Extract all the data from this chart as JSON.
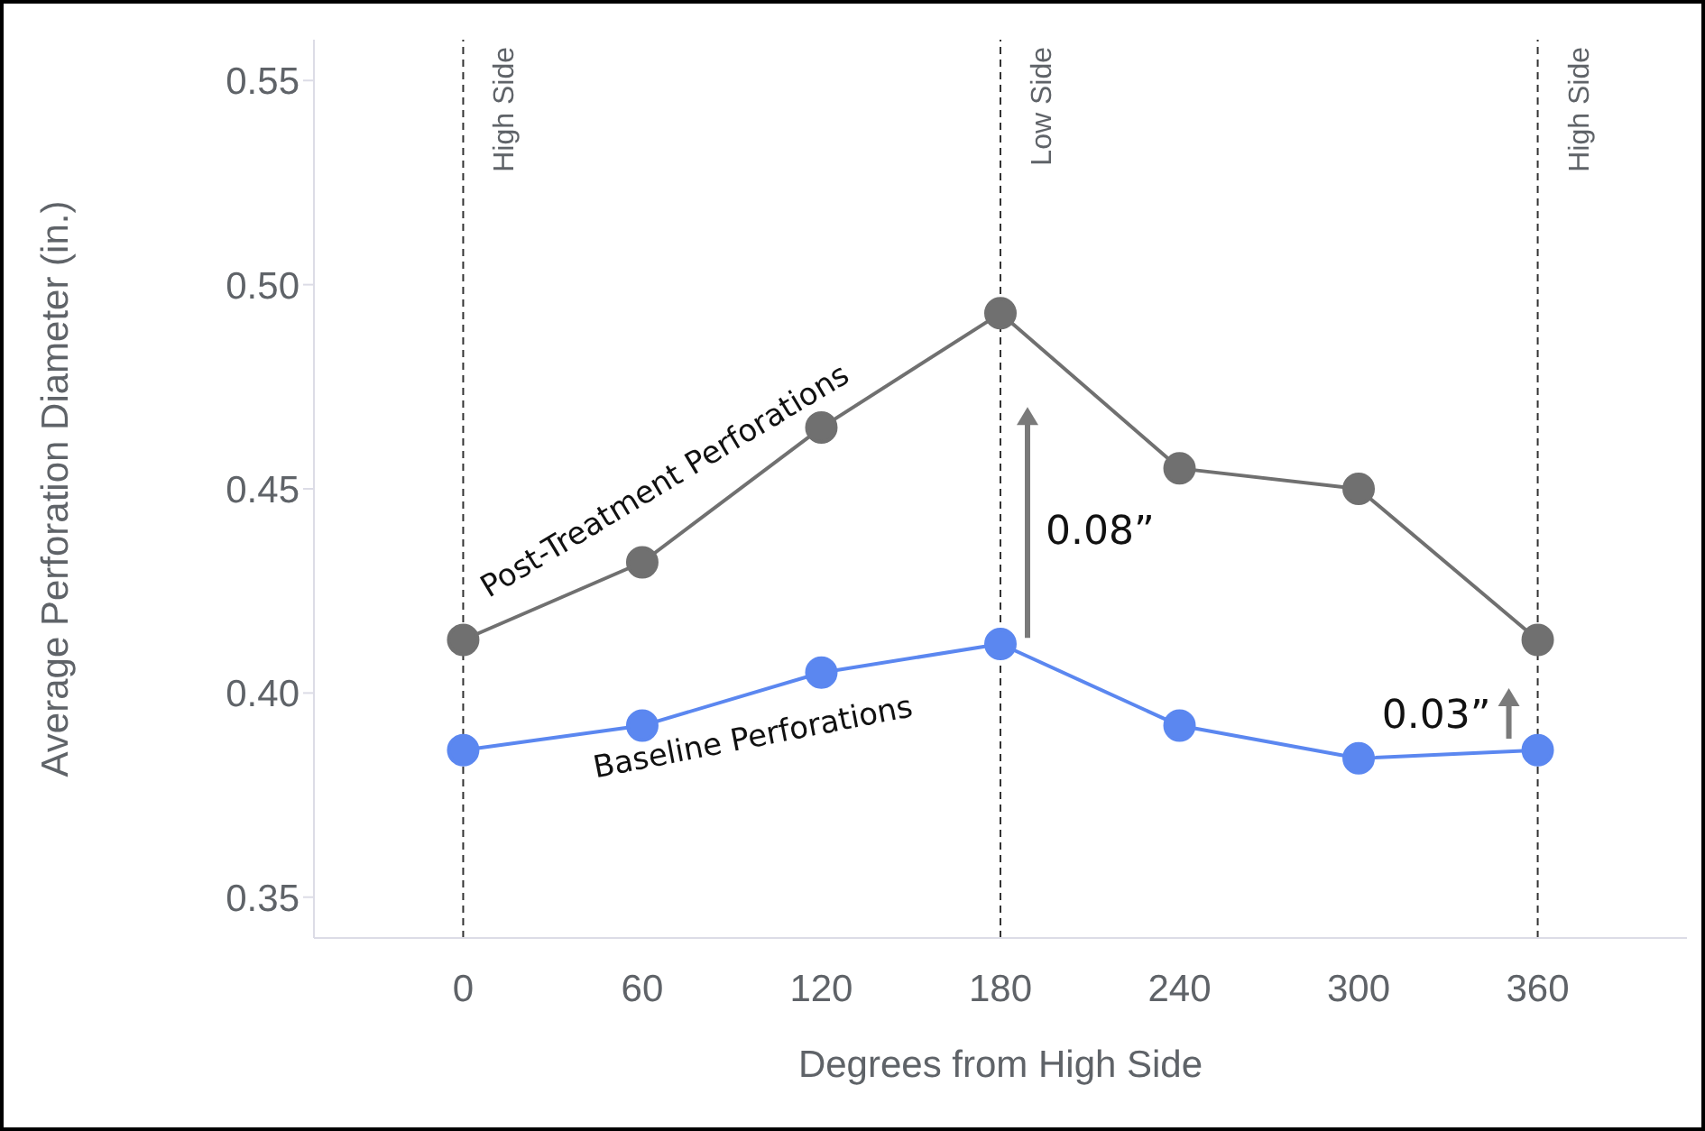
{
  "chart_data": {
    "type": "line",
    "xlabel": "Degrees from High Side",
    "ylabel": "Average Perforation Diameter (in.)",
    "x": [
      0,
      60,
      120,
      180,
      240,
      300,
      360
    ],
    "series": [
      {
        "name": "Post-Treatment Perforations",
        "color": "#707070",
        "values": [
          0.413,
          0.432,
          0.465,
          0.493,
          0.455,
          0.45,
          0.413
        ]
      },
      {
        "name": "Baseline Perforations",
        "color": "#5b87f0",
        "values": [
          0.386,
          0.392,
          0.405,
          0.412,
          0.392,
          0.384,
          0.386
        ]
      }
    ],
    "xlim": [
      -50,
      410
    ],
    "xticks": [
      0,
      60,
      120,
      180,
      240,
      300,
      360
    ],
    "ylim": [
      0.34,
      0.56
    ],
    "yticks": [
      0.35,
      {
        "value": 0.4,
        "label": "0.40"
      },
      0.45,
      {
        "value": 0.5,
        "label": "0.50"
      },
      0.55
    ],
    "marker": "circle",
    "line_style": "solid",
    "ref_lines": [
      {
        "axis": "x",
        "value": 0,
        "label": "High Side",
        "color": "#333333",
        "line_style": "dashed"
      },
      {
        "axis": "x",
        "value": 180,
        "label": "Low Side",
        "color": "#333333",
        "line_style": "dashed"
      },
      {
        "axis": "x",
        "value": 360,
        "label": "High Side",
        "color": "#333333",
        "line_style": "dashed"
      }
    ],
    "annotations": [
      {
        "text": "0.08”",
        "x": 180,
        "y": 0.44
      },
      {
        "text": "0.03”",
        "x": 360,
        "y": 0.395
      }
    ]
  }
}
